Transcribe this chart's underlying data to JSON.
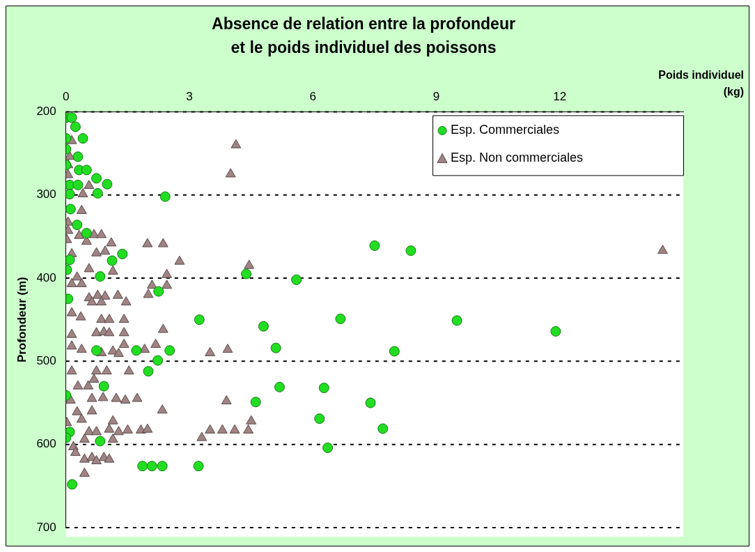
{
  "chart_data": {
    "type": "scatter",
    "title": "Absence de relation entre la profondeur\net le poids individuel des poissons",
    "xlabel": "Poids individuel\n(kg)",
    "ylabel": "Profondeur (m)",
    "xlim": [
      0,
      15
    ],
    "xticks": [
      0,
      3,
      6,
      9,
      12
    ],
    "ylim": [
      700,
      200
    ],
    "yticks": [
      200,
      300,
      400,
      500,
      600,
      700
    ],
    "grid": "y",
    "line_style": "dotted",
    "legend": "top right",
    "series": [
      {
        "name": "Esp. Commerciales",
        "color": "#22dd22",
        "marker": "circle",
        "x": [
          0,
          0.14,
          0.23,
          0,
          0.41,
          0,
          0.29,
          0,
          0.32,
          0.5,
          0.74,
          1.0,
          0.09,
          0.29,
          0.77,
          0.09,
          2.41,
          0.11,
          0.27,
          0.5,
          1.37,
          1.12,
          0.09,
          0.83,
          0.02,
          2.25,
          0.05,
          0.74,
          1.71,
          2.52,
          2.23,
          2.0,
          0.92,
          0,
          0.09,
          0,
          0.83,
          1.86,
          2.09,
          2.34,
          3.22,
          0.15,
          4.38,
          5.6,
          3.24,
          4.8,
          5.1,
          5.19,
          4.61,
          7.5,
          8.38,
          6.67,
          9.5,
          11.9,
          7.98,
          7.4,
          7.7,
          6.27,
          6.16,
          6.36
        ],
        "values": [
          207,
          207,
          218,
          232,
          232,
          245,
          254,
          264,
          270,
          270,
          280,
          287,
          288,
          288,
          298,
          299,
          302,
          317,
          336,
          346,
          371,
          379,
          378,
          398,
          390,
          416,
          425,
          487,
          487,
          487,
          499,
          512,
          530,
          541,
          585,
          592,
          596,
          626,
          626,
          626,
          626,
          648,
          395,
          402,
          450,
          458,
          484,
          531,
          549,
          361,
          367,
          449,
          451,
          464,
          488,
          550,
          581,
          532,
          569,
          604
        ]
      },
      {
        "name": "Esp. Non commerciales",
        "color": "#a08484",
        "marker": "triangle",
        "x": [
          0.14,
          0.09,
          0.05,
          0.05,
          0.56,
          0.41,
          0.38,
          0.05,
          0.05,
          0.32,
          0.68,
          0.86,
          0.5,
          1.1,
          0.02,
          1.98,
          2.36,
          0.74,
          0.95,
          0.14,
          2.76,
          0.56,
          1.14,
          2.45,
          0.27,
          0.14,
          0.38,
          2.09,
          2.45,
          2.0,
          0.56,
          0.77,
          0.95,
          1.26,
          1.46,
          0.63,
          0.86,
          0.14,
          0.36,
          0.86,
          1.05,
          1.41,
          0.74,
          0.92,
          1.05,
          1.41,
          2.36,
          0.14,
          0.14,
          0.38,
          1.41,
          0.86,
          1.14,
          1.28,
          1.91,
          2.18,
          0.14,
          0.74,
          0.99,
          1.53,
          0.68,
          0.29,
          0.54,
          0.11,
          0.63,
          0.9,
          1.22,
          1.44,
          1.73,
          2.34,
          0.27,
          0.63,
          0.38,
          0.02,
          1.14,
          0.56,
          0.74,
          1.05,
          1.28,
          1.5,
          1.82,
          1.98,
          1.14,
          0.45,
          0.18,
          0.23,
          0.45,
          0.63,
          0.74,
          0.92,
          1.05,
          0.45,
          4.13,
          4.0,
          14.5,
          4.45,
          3.5,
          3.93,
          3.9,
          3.5,
          3.8,
          4.1,
          4.43,
          4.5,
          3.3
        ],
        "values": [
          235,
          254,
          264,
          276,
          289,
          299,
          319,
          333,
          343,
          349,
          348,
          348,
          356,
          358,
          354,
          359,
          359,
          370,
          368,
          371,
          380,
          389,
          392,
          396,
          399,
          407,
          407,
          409,
          409,
          420,
          424,
          421,
          422,
          421,
          429,
          429,
          429,
          442,
          447,
          450,
          450,
          450,
          466,
          465,
          466,
          466,
          462,
          468,
          482,
          486,
          480,
          490,
          488,
          491,
          486,
          480,
          512,
          512,
          512,
          512,
          522,
          530,
          530,
          547,
          545,
          544,
          545,
          547,
          545,
          559,
          561,
          560,
          570,
          574,
          572,
          585,
          585,
          582,
          585,
          583,
          583,
          582,
          594,
          594,
          603,
          610,
          618,
          616,
          620,
          616,
          618,
          635,
          240,
          275,
          367,
          385,
          490,
          486,
          548,
          583,
          583,
          583,
          583,
          572,
          592
        ]
      }
    ]
  }
}
